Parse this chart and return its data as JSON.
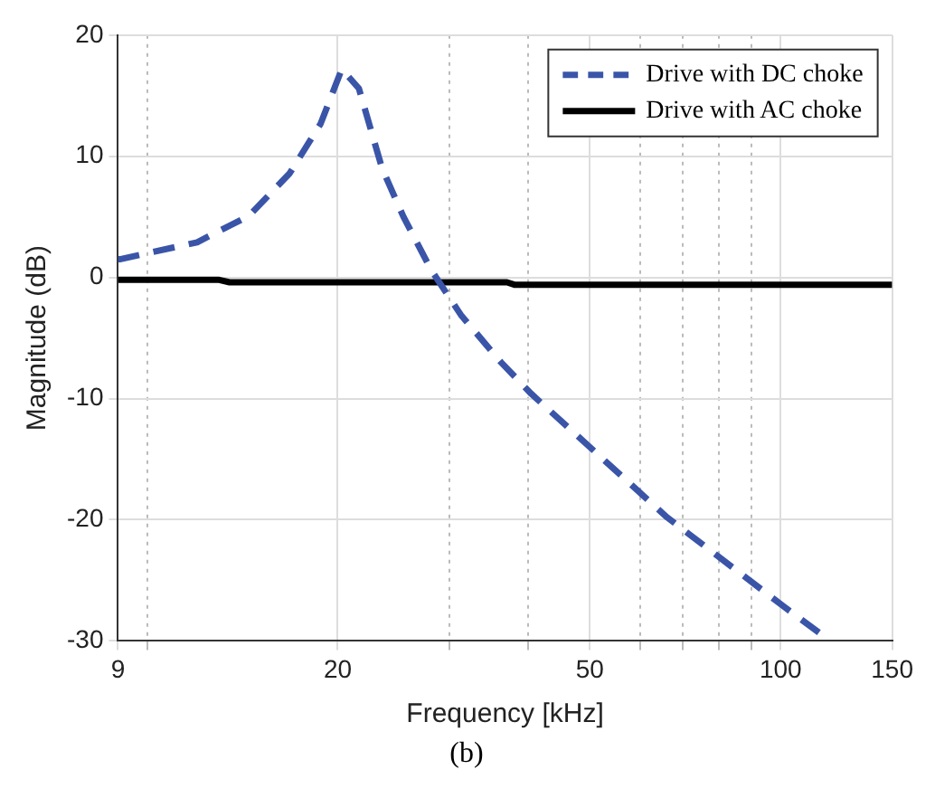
{
  "chart_data": {
    "type": "line",
    "xlabel": "Frequency [kHz]",
    "ylabel": "Magnitude (dB)",
    "annotations": [
      "(b)"
    ],
    "log": "x",
    "grid": true,
    "legend": "top right",
    "xlim": [
      9,
      150
    ],
    "xticks": [
      9,
      {
        "value": 10,
        "label": null
      },
      20,
      {
        "value": 30,
        "label": null
      },
      {
        "value": 40,
        "label": null
      },
      50,
      {
        "value": 60,
        "label": null
      },
      {
        "value": 70,
        "label": null
      },
      {
        "value": 80,
        "label": null
      },
      {
        "value": 90,
        "label": null
      },
      100,
      150
    ],
    "ylim": [
      -30,
      20
    ],
    "yticks": [
      -30,
      -20,
      -10,
      0,
      10,
      20
    ],
    "series": [
      {
        "name": "Drive with DC choke",
        "color": "#3a55a8",
        "line_style": "dashed",
        "x": [
          9,
          9.06,
          12,
          14.5,
          16.8,
          18.8,
          20.3,
          21.6,
          23.5,
          25.4,
          28.1,
          31.3,
          36.2,
          40.4,
          66.2,
          100.8,
          119.8
        ],
        "values": [
          1.5,
          1.5,
          2.9,
          5.1,
          8.6,
          12.7,
          17.2,
          15.6,
          9,
          5,
          0.6,
          -3.1,
          -7,
          -9.6,
          -19.8,
          -27.1,
          -30
        ]
      },
      {
        "name": "Drive with AC choke",
        "color": "#000000",
        "line_style": "solid",
        "x": [
          9,
          13,
          13.5,
          37,
          38,
          150
        ],
        "values": [
          -0.2,
          -0.2,
          -0.4,
          -0.4,
          -0.6,
          -0.6
        ]
      }
    ]
  }
}
